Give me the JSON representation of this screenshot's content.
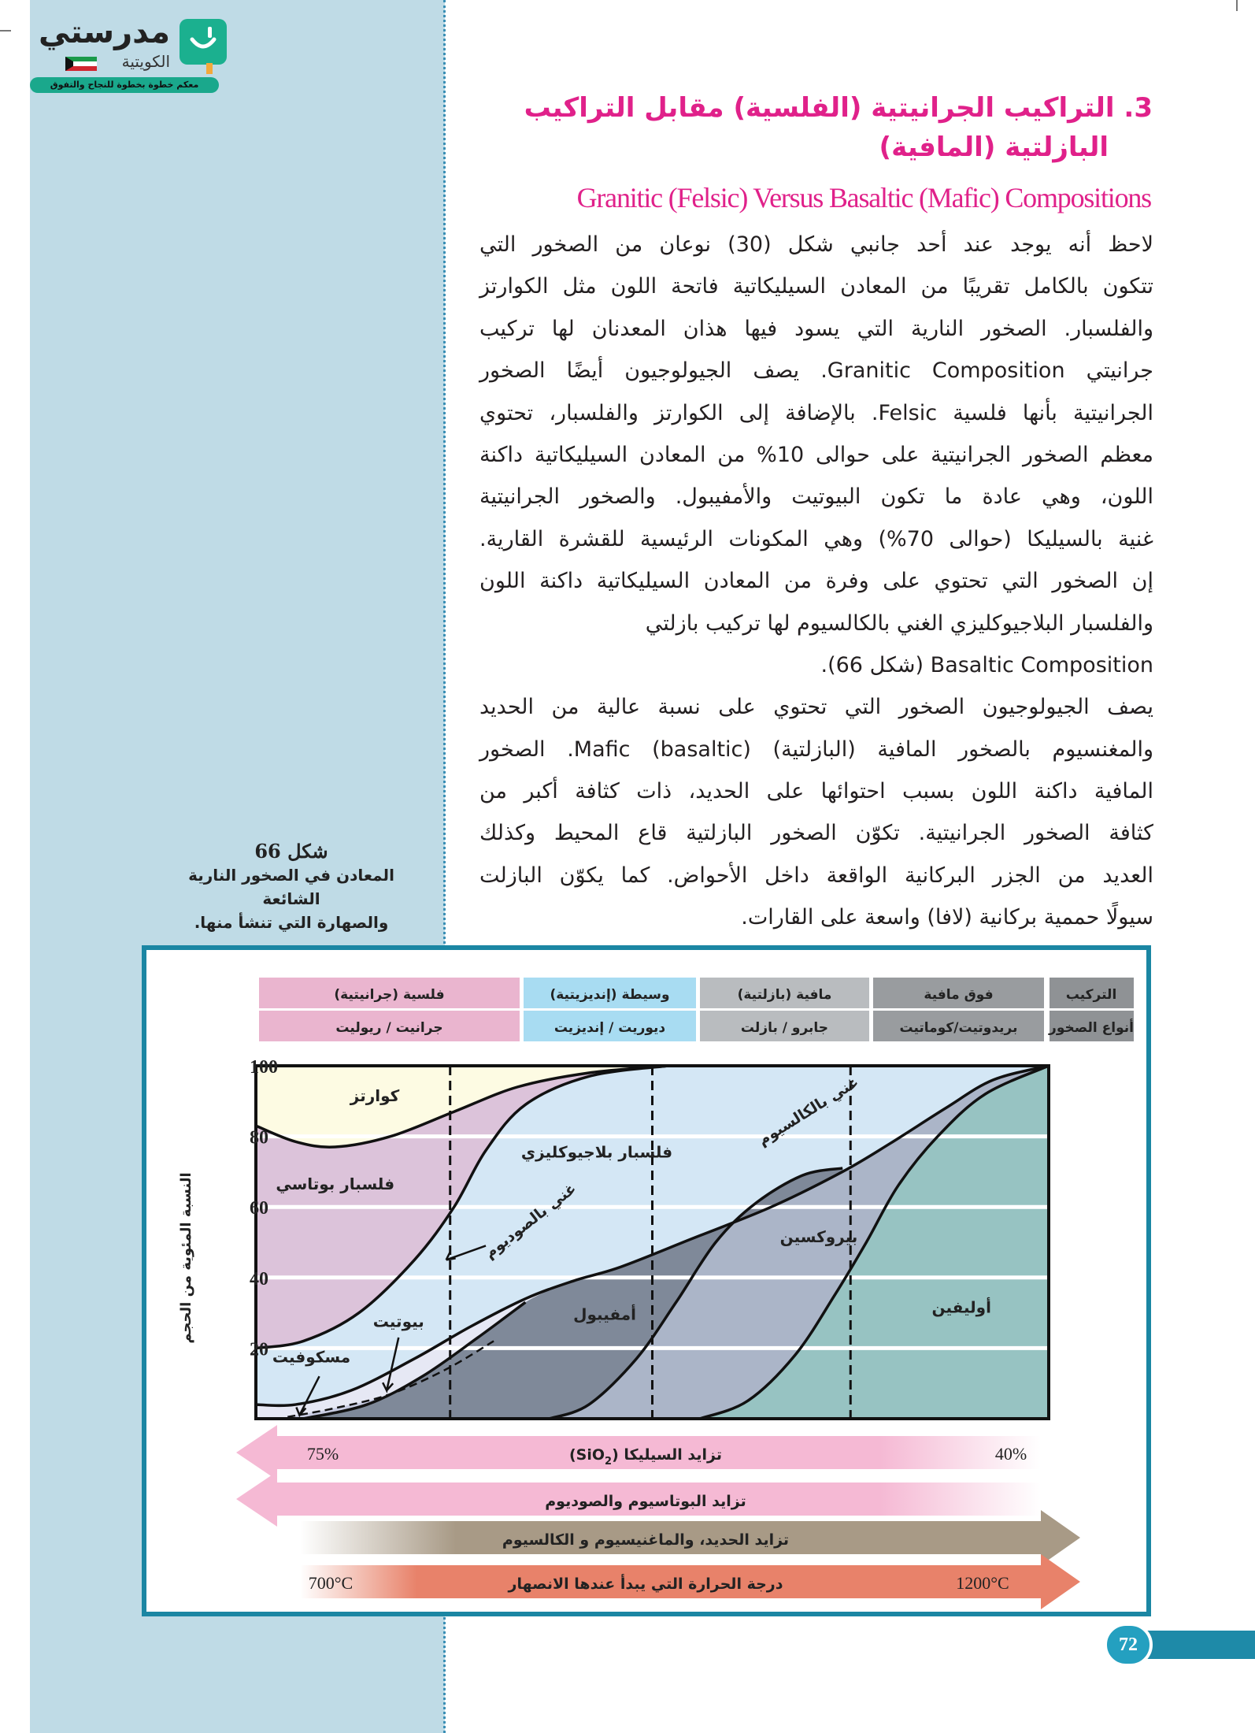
{
  "logo": {
    "name": "مدرستي",
    "sub": "الكويتية",
    "tagline": "معكم خطوة بخطوة للنجاح والتفوق"
  },
  "section": {
    "title_line1": "3. التراكيب الجرانيتية (الفلسية) مقابل التراكيب",
    "title_line2": "البازلتية (المافية)",
    "title_en": "Granitic (Felsic) Versus Basaltic (Mafic) Compositions"
  },
  "body_lines": [
    "لاحظ أنه يوجد عند أحد جانبي شكل (30) نوعان من الصخور التي",
    "تتكون بالكامل تقريبًا من المعادن السيليكاتية فاتحة اللون مثل الكوارتز",
    "والفلسبار. الصخور النارية التي يسود فيها هذان المعدنان لها تركيب",
    "جرانيتي Granitic Composition. يصف الجيولوجيون أيضًا الصخور",
    "الجرانيتية بأنها فلسية Felsic. بالإضافة إلى الكوارتز والفلسبار، تحتوي",
    "معظم الصخور الجرانيتية على حوالى 10% من المعادن السيليكاتية داكنة",
    "اللون، وهي عادة ما تكون البيوتيت والأمفيبول. والصخور الجرانيتية",
    "غنية بالسيليكا (حوالى 70%) وهي المكونات الرئيسية للقشرة القارية.",
    "إن الصخور التي تحتوي على وفرة من المعادن السيليكاتية داكنة اللون",
    "والفلسبار البلاجيوكليزي الغني بالكالسيوم لها تركيب بازلتي",
    "Basaltic Composition (شكل 66).",
    "يصف الجيولوجيون الصخور التي تحتوي على نسبة عالية من الحديد",
    "والمغنسيوم بالصخور المافية (البازلتية) Mafic (basaltic). الصخور",
    "المافية داكنة اللون بسبب احتوائها على الحديد، ذات كثافة أكبر من",
    "كثافة الصخور الجرانيتية. تكوّن الصخور البازلتية قاع المحيط وكذلك",
    "العديد من الجزر البركانية الواقعة داخل الأحواض. كما يكوّن البازلت",
    "سيولًا حممية بركانية (لافا) واسعة على القارات."
  ],
  "caption": {
    "label": "شكل 66",
    "line1": "المعادن في الصخور النارية الشائعة",
    "line2": "والصهارة التي تنشأ منها."
  },
  "page_number": "72",
  "colors": {
    "accent": "#e0218a",
    "frame": "#1b86a3",
    "panel": "#bfdbe6"
  },
  "chart_data": {
    "type": "area",
    "ylabel": "النسبة المئوية من الحجم",
    "ylim": [
      0,
      100
    ],
    "yticks": [
      "20",
      "40",
      "60",
      "80",
      "100"
    ],
    "grid": true,
    "header": {
      "row_labels": [
        "التركيب",
        "أنواع الصخور"
      ],
      "columns": [
        {
          "composition": "فلسية (جرانيتية)",
          "rocks": "جرانيت / ريوليت",
          "color": "#eab5cf"
        },
        {
          "composition": "وسيطة (إنديزيتية)",
          "rocks": "ديوريت / إنديزيت",
          "color": "#a8dcf2"
        },
        {
          "composition": "مافية (بازلتية)",
          "rocks": "جابرو / بازلت",
          "color": "#b9bcbf"
        },
        {
          "composition": "فوق مافية",
          "rocks": "بريدوتيت/كوماتيت",
          "color": "#999c9f"
        }
      ],
      "label_color": "#8f9295"
    },
    "regions": [
      {
        "name": "كوارتز",
        "color": "#fdfbe3"
      },
      {
        "name": "فلسبار بوتاسي",
        "color": "#dcc3da"
      },
      {
        "name": "فلسبار بلاجيوكليزي",
        "color": "#d4e7f5"
      },
      {
        "name": "مسكوفيت",
        "color": "#e6e8f4"
      },
      {
        "name": "بيوتيت",
        "color": "#c9cde3"
      },
      {
        "name": "أمفيبول",
        "color": "#7f8999"
      },
      {
        "name": "بيروكسين",
        "color": "#abb5c8"
      },
      {
        "name": "أوليفين",
        "color": "#97c3c2"
      }
    ],
    "annotations": [
      "غني بالصوديوم",
      "غني بالكالسيوم"
    ],
    "trends": [
      {
        "label": "تزايد السيليكا (SiO",
        "sub": "2",
        "close": ")",
        "left": "75%",
        "right": "40%",
        "direction": "left",
        "color": "#f5b9d4"
      },
      {
        "label": "تزايد البوتاسيوم والصوديوم",
        "direction": "left",
        "color": "#f5b9d4"
      },
      {
        "label": "تزايد الحديد، والماغنيسيوم و الكالسيوم",
        "direction": "right",
        "color": "#a89a86"
      },
      {
        "label": "درجة الحرارة التي يبدأ عندها الانصهار",
        "left": "700°C",
        "right": "1200°C",
        "direction": "right",
        "color": "#e8826a"
      }
    ]
  }
}
